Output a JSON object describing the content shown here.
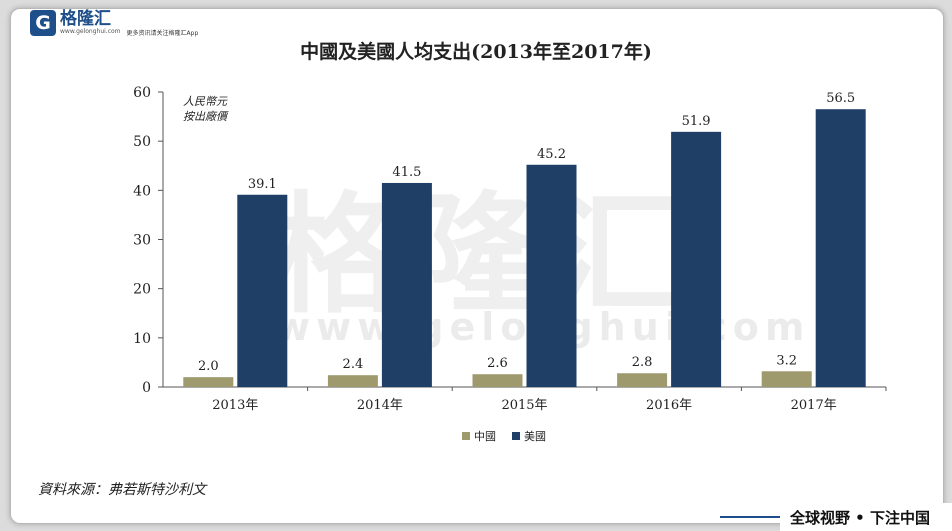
{
  "logo": {
    "mark": "G",
    "name": "格隆汇",
    "url": "www.gelonghui.com",
    "tagline": "更多资讯请关注格隆汇App"
  },
  "watermark": {
    "name": "格隆汇",
    "url": "www.gelonghui.com"
  },
  "footer": {
    "text": "全球视野 • 下注中国"
  },
  "source": "資料來源：弗若斯特沙利文",
  "colors": {
    "china": "#9e9a6e",
    "usa": "#1f3f66",
    "axis": "#555555"
  },
  "chart_data": {
    "type": "bar",
    "title": "中國及美國人均支出(2013年至2017年)",
    "unit_note": [
      "人民幣元",
      "按出廠價"
    ],
    "categories": [
      "2013年",
      "2014年",
      "2015年",
      "2016年",
      "2017年"
    ],
    "series": [
      {
        "name": "中國",
        "values": [
          2.0,
          2.4,
          2.6,
          2.8,
          3.2
        ],
        "labels": [
          "2.0",
          "2.4",
          "2.6",
          "2.8",
          "3.2"
        ]
      },
      {
        "name": "美國",
        "values": [
          39.1,
          41.5,
          45.2,
          51.9,
          56.5
        ],
        "labels": [
          "39.1",
          "41.5",
          "45.2",
          "51.9",
          "56.5"
        ]
      }
    ],
    "yticks": [
      0,
      10,
      20,
      30,
      40,
      50,
      60
    ],
    "ylim": [
      0,
      60
    ],
    "legend": "bottom-center",
    "grid": false
  }
}
